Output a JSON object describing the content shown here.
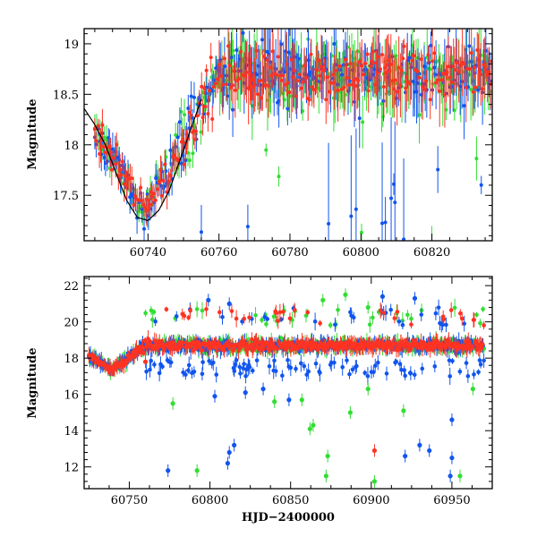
{
  "chart_data": [
    {
      "type": "scatter",
      "panel": "top",
      "title": "",
      "xlabel": "",
      "ylabel": "Magnitude",
      "xlim": [
        60722,
        60837
      ],
      "ylim": [
        19.15,
        17.05
      ],
      "y_inverted": true,
      "xticks": [
        60740,
        60760,
        60780,
        60800,
        60820
      ],
      "yticks": [
        17.5,
        18,
        18.5,
        19
      ],
      "ytick_labels": [
        "17.5",
        "18",
        "18.5",
        "19"
      ],
      "series": [
        {
          "name": "green",
          "color": "#33dd33"
        },
        {
          "name": "blue",
          "color": "#1155ee"
        },
        {
          "name": "red",
          "color": "#ff3322"
        },
        {
          "name": "model-curve",
          "color": "#000000",
          "x": [
            60722,
            60725,
            60728,
            60731,
            60734,
            60737,
            60740,
            60743,
            60746,
            60749,
            60752,
            60755
          ],
          "y": [
            18.36,
            18.2,
            18.0,
            17.72,
            17.45,
            17.28,
            17.25,
            17.35,
            17.55,
            17.85,
            18.15,
            18.45
          ]
        }
      ]
    },
    {
      "type": "scatter",
      "panel": "bottom",
      "title": "",
      "xlabel": "HJD−2400000",
      "ylabel": "Magnitude",
      "xlim": [
        60722,
        60975
      ],
      "ylim": [
        22.5,
        10.8
      ],
      "y_inverted": true,
      "xticks": [
        60750,
        60800,
        60850,
        60900,
        60950
      ],
      "yticks": [
        12,
        14,
        16,
        18,
        20,
        22
      ],
      "ytick_labels": [
        "12",
        "14",
        "16",
        "18",
        "20",
        "22"
      ],
      "series": [
        {
          "name": "green",
          "color": "#33dd33",
          "outliers": [
            [
              60792,
              11.8
            ],
            [
              60872,
              11.5
            ],
            [
              60902,
              11.2
            ],
            [
              60955,
              11.5
            ],
            [
              60873,
              12.6
            ],
            [
              60862,
              14.1
            ],
            [
              60864,
              14.3
            ],
            [
              60777,
              15.5
            ],
            [
              60887,
              15.0
            ],
            [
              60840,
              15.6
            ],
            [
              60857,
              15.7
            ],
            [
              60920,
              15.1
            ],
            [
              60898,
              16.3
            ],
            [
              60963,
              16.3
            ],
            [
              60870,
              21.2
            ],
            [
              60884,
              21.5
            ],
            [
              60898,
              20.8
            ]
          ]
        },
        {
          "name": "blue",
          "color": "#1155ee",
          "outliers": [
            [
              60774,
              11.8
            ],
            [
              60811,
              12.2
            ],
            [
              60812,
              12.8
            ],
            [
              60815,
              13.2
            ],
            [
              60921,
              12.6
            ],
            [
              60930,
              13.2
            ],
            [
              60936,
              12.9
            ],
            [
              60949,
              11.5
            ],
            [
              60950,
              12.5
            ],
            [
              60950,
              14.6
            ],
            [
              60803,
              15.9
            ],
            [
              60822,
              16.1
            ],
            [
              60833,
              16.3
            ],
            [
              60849,
              15.7
            ],
            [
              60799,
              21.2
            ],
            [
              60812,
              21.0
            ],
            [
              60907,
              21.4
            ],
            [
              60927,
              21.3
            ]
          ]
        },
        {
          "name": "red",
          "color": "#ff3322",
          "outliers": [
            [
              60902,
              12.9
            ],
            [
              60760,
              17.8
            ]
          ]
        }
      ]
    }
  ]
}
